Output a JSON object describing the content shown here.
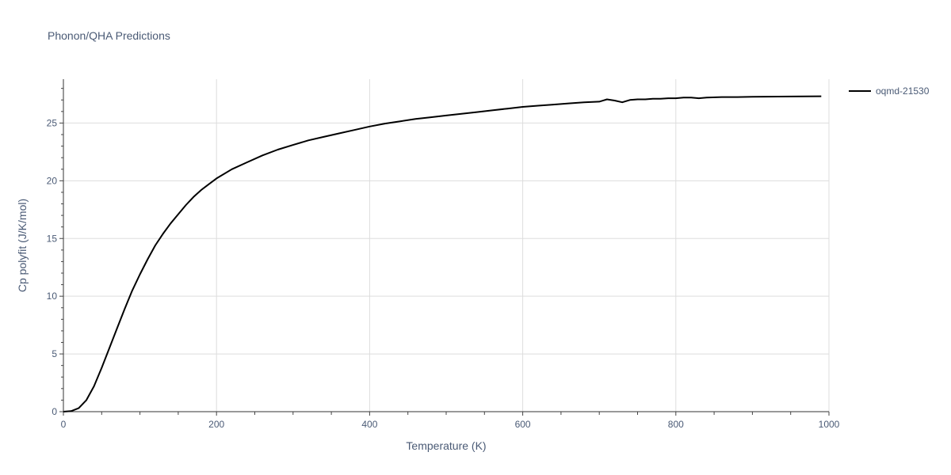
{
  "chart_data": {
    "type": "line",
    "title": "Phonon/QHA Predictions",
    "xlabel": "Temperature (K)",
    "ylabel": "Cp polyfit (J/K/mol)",
    "xlim": [
      0,
      1000
    ],
    "ylim": [
      0,
      28.8
    ],
    "xticks": [
      0,
      200,
      400,
      600,
      800,
      1000
    ],
    "yticks": [
      0,
      5,
      10,
      15,
      20,
      25
    ],
    "grid": true,
    "legend_position": "top-right",
    "series": [
      {
        "name": "oqmd-21530",
        "color": "#000000",
        "x": [
          0,
          10,
          20,
          30,
          40,
          50,
          60,
          70,
          80,
          90,
          100,
          110,
          120,
          130,
          140,
          150,
          160,
          170,
          180,
          190,
          200,
          220,
          240,
          260,
          280,
          300,
          320,
          340,
          360,
          380,
          400,
          420,
          440,
          460,
          480,
          500,
          520,
          540,
          560,
          580,
          600,
          620,
          640,
          660,
          680,
          700,
          710,
          720,
          730,
          740,
          750,
          760,
          770,
          780,
          790,
          800,
          810,
          820,
          830,
          840,
          860,
          880,
          900,
          950,
          990
        ],
        "y": [
          0,
          0.05,
          0.3,
          1.0,
          2.2,
          3.8,
          5.5,
          7.2,
          8.9,
          10.5,
          11.9,
          13.2,
          14.4,
          15.4,
          16.3,
          17.1,
          17.9,
          18.6,
          19.2,
          19.7,
          20.2,
          21.0,
          21.6,
          22.2,
          22.7,
          23.1,
          23.5,
          23.8,
          24.1,
          24.4,
          24.7,
          24.95,
          25.15,
          25.35,
          25.5,
          25.65,
          25.8,
          25.95,
          26.1,
          26.25,
          26.4,
          26.5,
          26.6,
          26.7,
          26.8,
          26.85,
          27.05,
          26.95,
          26.8,
          27.0,
          27.05,
          27.05,
          27.1,
          27.1,
          27.15,
          27.15,
          27.2,
          27.2,
          27.15,
          27.2,
          27.25,
          27.25,
          27.27,
          27.3,
          27.32
        ]
      }
    ]
  }
}
